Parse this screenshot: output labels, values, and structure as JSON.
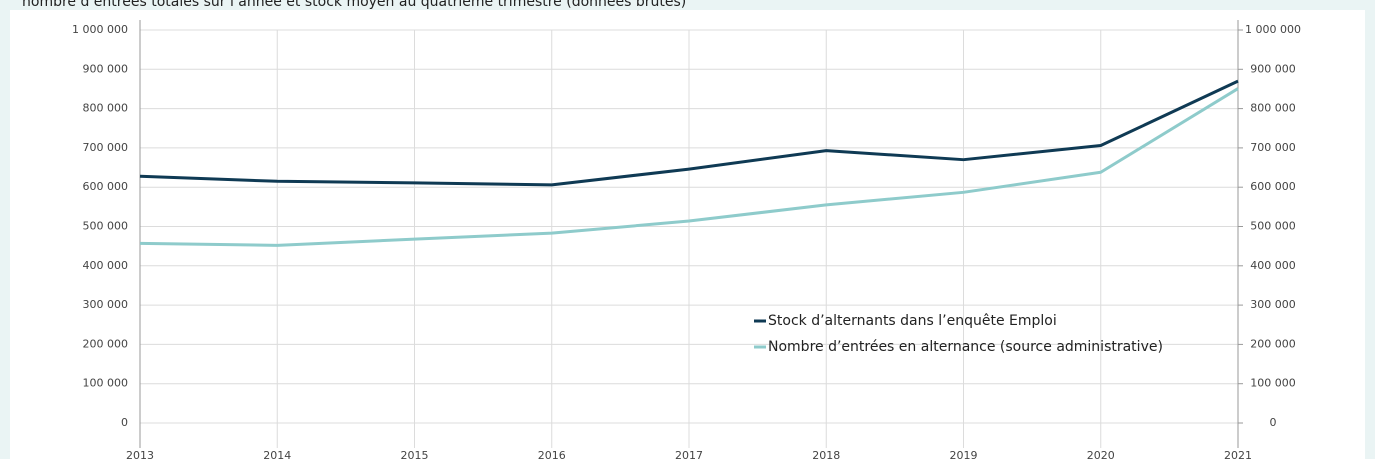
{
  "chart_data": {
    "type": "line",
    "title": "nombre d’entrées totales sur l’année et stock moyen au quatrième trimestre (données brutes)",
    "x": [
      2013,
      2014,
      2015,
      2016,
      2017,
      2018,
      2019,
      2020,
      2021
    ],
    "xlim": [
      2013,
      2021
    ],
    "xticks": [
      2013,
      2014,
      2015,
      2016,
      2017,
      2018,
      2019,
      2020,
      2021
    ],
    "series": [
      {
        "name": "Stock d’alternants dans l’enquête Emploi",
        "color": "#0f3a54",
        "values": [
          628000,
          615000,
          611000,
          606000,
          646000,
          693000,
          670000,
          706000,
          870000
        ]
      },
      {
        "name": "Nombre d’entrées en alternance (source administrative)",
        "color": "#8ecbcb",
        "values": [
          457000,
          452000,
          468000,
          483000,
          514000,
          555000,
          587000,
          638000,
          851000
        ]
      }
    ],
    "ylim": [
      0,
      1000000
    ],
    "yticks": [
      0,
      {
        "value": 100000,
        "label": "100 000"
      },
      {
        "value": 200000,
        "label": "200 000"
      },
      {
        "value": 300000,
        "label": "300 000"
      },
      {
        "value": 400000,
        "label": "400 000"
      },
      {
        "value": 500000,
        "label": "500 000"
      },
      {
        "value": 600000,
        "label": "600 000"
      },
      {
        "value": 700000,
        "label": "700 000"
      },
      {
        "value": 800000,
        "label": "800 000"
      },
      {
        "value": 900000,
        "label": "900 000"
      },
      {
        "value": 1000000,
        "label": "1 000 000"
      }
    ],
    "y2lim": [
      0,
      1000000
    ],
    "y2ticks": [
      0,
      {
        "value": 100000,
        "label": "100 000"
      },
      {
        "value": 200000,
        "label": "200 000"
      },
      {
        "value": 300000,
        "label": "300 000"
      },
      {
        "value": 400000,
        "label": "400 000"
      },
      {
        "value": 500000,
        "label": "500 000"
      },
      {
        "value": 600000,
        "label": "600 000"
      },
      {
        "value": 700000,
        "label": "700 000"
      },
      {
        "value": 800000,
        "label": "800 000"
      },
      {
        "value": 900000,
        "label": "900 000"
      },
      {
        "value": 1000000,
        "label": "1 000 000"
      }
    ],
    "grid": true
  }
}
